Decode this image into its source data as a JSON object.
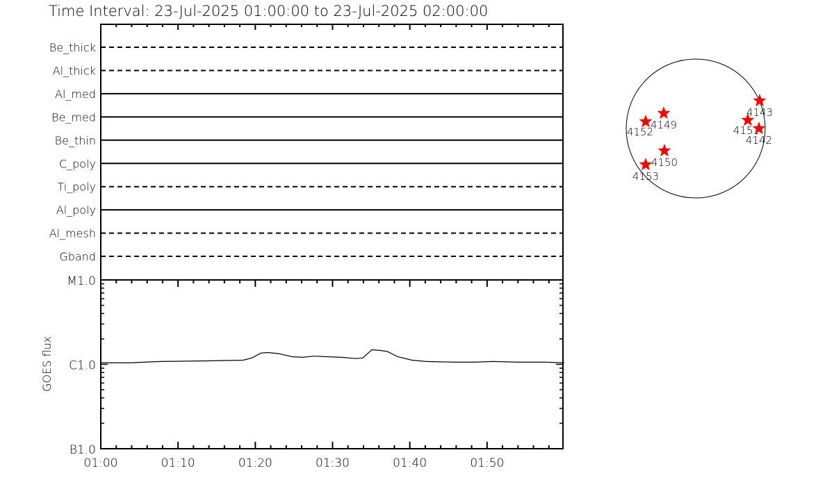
{
  "title": "Time Interval: 23-Jul-2025 01:00:00 to 23-Jul-2025 02:00:00",
  "chart_data": [
    {
      "type": "timeline",
      "description_of_marks": "filter coverage rows",
      "rows": [
        {
          "label": "Be_thick",
          "style": "dashed"
        },
        {
          "label": "Al_thick",
          "style": "dashed"
        },
        {
          "label": "Al_med",
          "style": "solid"
        },
        {
          "label": "Be_med",
          "style": "solid"
        },
        {
          "label": "Be_thin",
          "style": "solid"
        },
        {
          "label": "C_poly",
          "style": "solid"
        },
        {
          "label": "Ti_poly",
          "style": "dashed"
        },
        {
          "label": "Al_poly",
          "style": "solid"
        },
        {
          "label": "Al_mesh",
          "style": "dashed"
        },
        {
          "label": "Gband",
          "style": "dashed"
        }
      ],
      "xlim": [
        "01:00:00",
        "02:00:00"
      ]
    },
    {
      "type": "line",
      "ylabel": "GOES flux",
      "yscale": "log",
      "ylim": [
        1e-07,
        1e-05
      ],
      "yticks": [
        {
          "value": 1e-07,
          "label": "B1.0"
        },
        {
          "value": 1e-06,
          "label": "C1.0"
        },
        {
          "value": 1e-05,
          "label": "M1.0"
        }
      ],
      "xlim": [
        "01:00:00",
        "02:00:00"
      ],
      "xticks": [
        "01:00",
        "01:10",
        "01:20",
        "01:30",
        "01:40",
        "01:50"
      ],
      "color": "#000000",
      "x": [
        "01:00:00",
        "01:03:55",
        "01:05:33",
        "01:07:49",
        "01:13:55",
        "01:18:27",
        "01:19:33",
        "01:20:44",
        "01:21:38",
        "01:23:00",
        "01:24:49",
        "01:26:11",
        "01:27:33",
        "01:29:22",
        "01:31:11",
        "01:33:00",
        "01:33:55",
        "01:35:05",
        "01:36:11",
        "01:37:05",
        "01:38:27",
        "01:40:16",
        "01:42:05",
        "01:45:44",
        "01:48:27",
        "01:50:44",
        "01:53:55",
        "01:57:33",
        "02:00:00"
      ],
      "y": [
        1.04e-06,
        1.04e-06,
        1.06e-06,
        1.08e-06,
        1.1e-06,
        1.12e-06,
        1.19e-06,
        1.36e-06,
        1.38e-06,
        1.34e-06,
        1.23e-06,
        1.21e-06,
        1.25e-06,
        1.23e-06,
        1.21e-06,
        1.17e-06,
        1.19e-06,
        1.49e-06,
        1.46e-06,
        1.42e-06,
        1.23e-06,
        1.12e-06,
        1.08e-06,
        1.06e-06,
        1.06e-06,
        1.08e-06,
        1.06e-06,
        1.06e-06,
        1.04e-06
      ]
    },
    {
      "type": "scatter",
      "units": "solar radii",
      "marker_color": "#ff0000",
      "marker": "star",
      "points": [
        {
          "label": "4143",
          "x": 0.92,
          "y": 0.4
        },
        {
          "label": "4151",
          "x": 0.75,
          "y": 0.12
        },
        {
          "label": "4142",
          "x": 0.91,
          "y": 0.0
        },
        {
          "label": "4149",
          "x": -0.46,
          "y": 0.22
        },
        {
          "label": "4152",
          "x": -0.72,
          "y": 0.1
        },
        {
          "label": "4150",
          "x": -0.45,
          "y": -0.32
        },
        {
          "label": "4153",
          "x": -0.72,
          "y": -0.52
        }
      ]
    }
  ]
}
